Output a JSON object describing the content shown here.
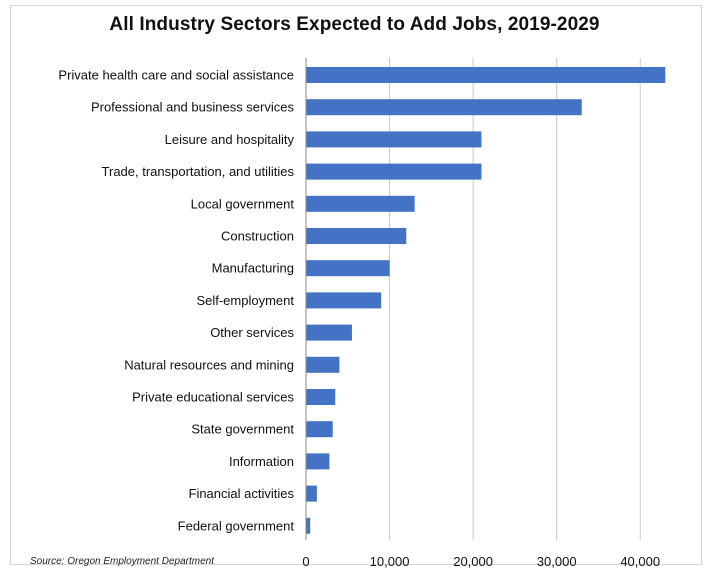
{
  "chart_data": {
    "type": "bar",
    "orientation": "horizontal",
    "title": "All Industry Sectors Expected to Add Jobs, 2019-2029",
    "source": "Source: Oregon Employment Department",
    "categories": [
      "Private health care and social assistance",
      "Professional and business services",
      "Leisure and hospitality",
      "Trade, transportation, and utilities",
      "Local government",
      "Construction",
      "Manufacturing",
      "Self-employment",
      "Other services",
      "Natural resources and mining",
      "Private educational services",
      "State government",
      "Information",
      "Financial activities",
      "Federal government"
    ],
    "values": [
      43000,
      33000,
      21000,
      21000,
      13000,
      12000,
      10000,
      9000,
      5500,
      4000,
      3500,
      3200,
      2800,
      1300,
      500
    ],
    "xlim": [
      0,
      45000
    ],
    "xticks": [
      0,
      10000,
      20000,
      30000,
      40000
    ],
    "xtick_labels": [
      "0",
      "10,000",
      "20,000",
      "30,000",
      "40,000"
    ],
    "xlabel": "",
    "ylabel": "",
    "grid": "vertical",
    "bar_color": "#4472c4",
    "grid_color": "#c8c8c8"
  }
}
